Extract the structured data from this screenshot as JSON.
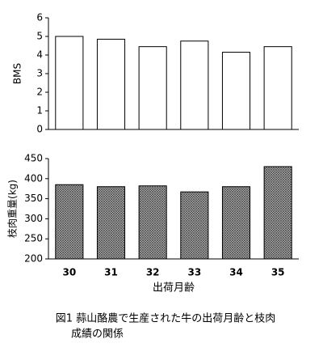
{
  "chart_data": [
    {
      "type": "bar",
      "y_label": "BMS",
      "values": [
        5.0,
        4.85,
        4.45,
        4.75,
        4.15,
        4.45
      ],
      "color": "#ffffff",
      "ylim": [
        0,
        6
      ],
      "yticks": [
        0,
        1,
        2,
        3,
        4,
        5,
        6
      ]
    },
    {
      "type": "bar",
      "y_label": "枝肉重量(kg)",
      "x_label": "出荷月齢",
      "categories": [
        "30",
        "31",
        "32",
        "33",
        "34",
        "35"
      ],
      "values": [
        385,
        380,
        382,
        367,
        380,
        430
      ],
      "color": "#8c8c8c",
      "ylim": [
        200,
        450
      ],
      "yticks": [
        200,
        250,
        300,
        350,
        400,
        450
      ]
    }
  ],
  "caption": [
    "図1 蒜山酪農で生産された牛の出荷月齢と枝肉",
    "成績の関係"
  ]
}
